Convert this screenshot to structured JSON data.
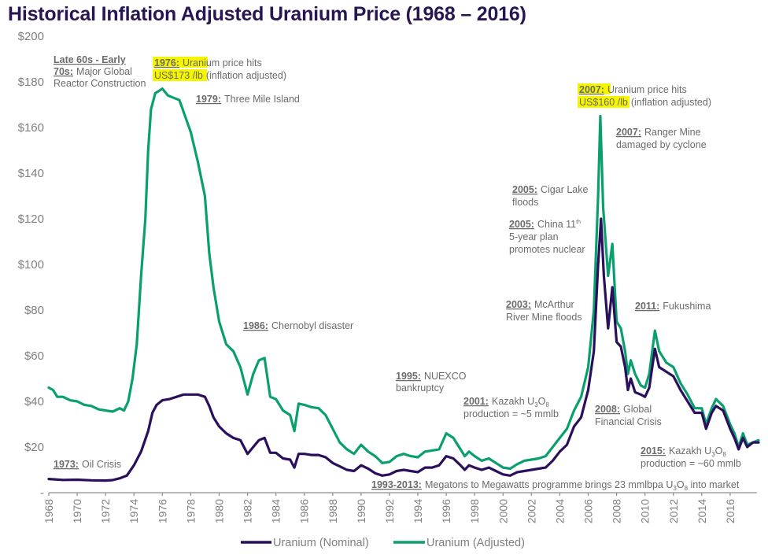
{
  "title": "Historical Inflation Adjusted Uranium Price (1968 – 2016)",
  "chart_data": {
    "type": "line",
    "title": "Historical Inflation Adjusted Uranium Price (1968 – 2016)",
    "xlabel": "",
    "ylabel": "",
    "xlim": [
      1968,
      2018
    ],
    "ylim": [
      0,
      200
    ],
    "yticks": [
      0,
      20,
      40,
      60,
      80,
      100,
      120,
      140,
      160,
      180,
      200
    ],
    "ytick_labels": [
      "-",
      "$20",
      "$40",
      "$60",
      "$80",
      "$100",
      "$120",
      "$140",
      "$160",
      "$180",
      "$200"
    ],
    "xticks": [
      1968,
      1970,
      1972,
      1974,
      1976,
      1978,
      1980,
      1982,
      1984,
      1986,
      1988,
      1990,
      1992,
      1994,
      1996,
      1998,
      2000,
      2002,
      2004,
      2006,
      2008,
      2010,
      2012,
      2014,
      2016
    ],
    "grid": false,
    "legend_position": "bottom",
    "series": [
      {
        "name": "Uranium (Nominal)",
        "color": "#2a0f5c",
        "points": [
          [
            1968.0,
            6.0
          ],
          [
            1969.0,
            5.6
          ],
          [
            1970.0,
            5.7
          ],
          [
            1971.0,
            5.4
          ],
          [
            1972.0,
            5.3
          ],
          [
            1972.5,
            5.5
          ],
          [
            1973.0,
            6.3
          ],
          [
            1973.5,
            7.5
          ],
          [
            1974.0,
            12
          ],
          [
            1974.5,
            18
          ],
          [
            1975.0,
            27
          ],
          [
            1975.3,
            35
          ],
          [
            1975.6,
            38.5
          ],
          [
            1976.0,
            40.5
          ],
          [
            1976.5,
            41
          ],
          [
            1977.0,
            42
          ],
          [
            1977.5,
            43
          ],
          [
            1978.0,
            43
          ],
          [
            1978.5,
            43
          ],
          [
            1979.0,
            42
          ],
          [
            1979.3,
            38
          ],
          [
            1979.6,
            33
          ],
          [
            1980.0,
            29
          ],
          [
            1980.5,
            26
          ],
          [
            1981.0,
            24
          ],
          [
            1981.5,
            23
          ],
          [
            1982.0,
            17
          ],
          [
            1982.4,
            20
          ],
          [
            1982.8,
            23
          ],
          [
            1983.2,
            24
          ],
          [
            1983.6,
            17.5
          ],
          [
            1984.0,
            17.5
          ],
          [
            1984.5,
            15
          ],
          [
            1985.0,
            14.5
          ],
          [
            1985.3,
            11
          ],
          [
            1985.6,
            17
          ],
          [
            1986.0,
            17
          ],
          [
            1986.5,
            16.5
          ],
          [
            1987.0,
            16.5
          ],
          [
            1987.5,
            15.5
          ],
          [
            1988.0,
            13
          ],
          [
            1988.5,
            11.5
          ],
          [
            1989.0,
            10
          ],
          [
            1989.5,
            9.5
          ],
          [
            1990.0,
            12
          ],
          [
            1990.5,
            10.5
          ],
          [
            1991.0,
            8.5
          ],
          [
            1991.5,
            7.5
          ],
          [
            1992.0,
            8
          ],
          [
            1992.5,
            9.5
          ],
          [
            1993.0,
            10
          ],
          [
            1993.5,
            9.5
          ],
          [
            1994.0,
            9
          ],
          [
            1994.5,
            11
          ],
          [
            1995.0,
            11
          ],
          [
            1995.5,
            12
          ],
          [
            1996.0,
            16
          ],
          [
            1996.5,
            15
          ],
          [
            1997.0,
            12
          ],
          [
            1997.3,
            10
          ],
          [
            1997.6,
            12
          ],
          [
            1998.0,
            11
          ],
          [
            1998.5,
            10
          ],
          [
            1999.0,
            11
          ],
          [
            1999.5,
            9.5
          ],
          [
            2000.0,
            8
          ],
          [
            2000.5,
            7.5
          ],
          [
            2001.0,
            9
          ],
          [
            2001.5,
            9.5
          ],
          [
            2002.0,
            10
          ],
          [
            2002.5,
            10.5
          ],
          [
            2003.0,
            11
          ],
          [
            2003.5,
            14
          ],
          [
            2004.0,
            18
          ],
          [
            2004.5,
            21
          ],
          [
            2005.0,
            29
          ],
          [
            2005.5,
            33
          ],
          [
            2006.0,
            45
          ],
          [
            2006.4,
            62
          ],
          [
            2006.7,
            100
          ],
          [
            2006.9,
            120
          ],
          [
            2007.1,
            95
          ],
          [
            2007.4,
            72
          ],
          [
            2007.7,
            90
          ],
          [
            2008.0,
            66
          ],
          [
            2008.3,
            64
          ],
          [
            2008.6,
            55
          ],
          [
            2008.8,
            45
          ],
          [
            2009.0,
            50
          ],
          [
            2009.3,
            44
          ],
          [
            2009.7,
            43
          ],
          [
            2010.0,
            42
          ],
          [
            2010.3,
            46
          ],
          [
            2010.7,
            63
          ],
          [
            2011.0,
            55
          ],
          [
            2011.5,
            53
          ],
          [
            2012.0,
            51
          ],
          [
            2012.5,
            45
          ],
          [
            2013.0,
            40
          ],
          [
            2013.5,
            35
          ],
          [
            2014.0,
            35
          ],
          [
            2014.3,
            28
          ],
          [
            2014.7,
            35
          ],
          [
            2015.0,
            38
          ],
          [
            2015.5,
            36
          ],
          [
            2016.0,
            28
          ],
          [
            2016.3,
            24
          ],
          [
            2016.6,
            19
          ],
          [
            2016.9,
            24
          ],
          [
            2017.2,
            20
          ],
          [
            2017.6,
            22
          ],
          [
            2018.0,
            22
          ]
        ]
      },
      {
        "name": "Uranium (Adjusted)",
        "color": "#0aa06e",
        "points": [
          [
            1968.0,
            46
          ],
          [
            1968.3,
            45
          ],
          [
            1968.6,
            42
          ],
          [
            1969.0,
            42
          ],
          [
            1969.5,
            40.5
          ],
          [
            1970.0,
            40
          ],
          [
            1970.5,
            38.5
          ],
          [
            1971.0,
            38
          ],
          [
            1971.5,
            36.5
          ],
          [
            1972.0,
            36
          ],
          [
            1972.5,
            35.5
          ],
          [
            1973.0,
            37
          ],
          [
            1973.3,
            36
          ],
          [
            1973.6,
            40
          ],
          [
            1973.9,
            50
          ],
          [
            1974.2,
            65
          ],
          [
            1974.5,
            95
          ],
          [
            1974.8,
            120
          ],
          [
            1975.0,
            150
          ],
          [
            1975.2,
            168
          ],
          [
            1975.5,
            175
          ],
          [
            1976.0,
            177
          ],
          [
            1976.4,
            174
          ],
          [
            1976.8,
            173
          ],
          [
            1977.2,
            172
          ],
          [
            1977.6,
            165
          ],
          [
            1978.0,
            158
          ],
          [
            1978.5,
            145
          ],
          [
            1979.0,
            130
          ],
          [
            1979.3,
            105
          ],
          [
            1979.6,
            90
          ],
          [
            1980.0,
            75
          ],
          [
            1980.5,
            65
          ],
          [
            1981.0,
            62
          ],
          [
            1981.5,
            55
          ],
          [
            1982.0,
            43
          ],
          [
            1982.4,
            52
          ],
          [
            1982.8,
            58
          ],
          [
            1983.2,
            59
          ],
          [
            1983.6,
            42
          ],
          [
            1984.0,
            41
          ],
          [
            1984.5,
            36
          ],
          [
            1985.0,
            34
          ],
          [
            1985.3,
            27
          ],
          [
            1985.6,
            39
          ],
          [
            1986.0,
            38.5
          ],
          [
            1986.5,
            37.5
          ],
          [
            1987.0,
            37
          ],
          [
            1987.5,
            34
          ],
          [
            1988.0,
            28
          ],
          [
            1988.5,
            22
          ],
          [
            1989.0,
            19
          ],
          [
            1989.5,
            17
          ],
          [
            1990.0,
            21
          ],
          [
            1990.5,
            18
          ],
          [
            1991.0,
            16
          ],
          [
            1991.5,
            13
          ],
          [
            1992.0,
            13.5
          ],
          [
            1992.5,
            16
          ],
          [
            1993.0,
            17
          ],
          [
            1993.5,
            16
          ],
          [
            1994.0,
            15.5
          ],
          [
            1994.5,
            18
          ],
          [
            1995.0,
            18.5
          ],
          [
            1995.5,
            19
          ],
          [
            1996.0,
            26
          ],
          [
            1996.5,
            24
          ],
          [
            1997.0,
            19
          ],
          [
            1997.3,
            16
          ],
          [
            1997.6,
            18
          ],
          [
            1998.0,
            16
          ],
          [
            1998.5,
            14
          ],
          [
            1999.0,
            15
          ],
          [
            1999.5,
            13
          ],
          [
            2000.0,
            11
          ],
          [
            2000.5,
            10.5
          ],
          [
            2001.0,
            12.5
          ],
          [
            2001.5,
            14
          ],
          [
            2002.0,
            14.5
          ],
          [
            2002.5,
            15
          ],
          [
            2003.0,
            16
          ],
          [
            2003.5,
            20
          ],
          [
            2004.0,
            24
          ],
          [
            2004.5,
            28
          ],
          [
            2005.0,
            36
          ],
          [
            2005.5,
            42
          ],
          [
            2006.0,
            55
          ],
          [
            2006.4,
            80
          ],
          [
            2006.7,
            130
          ],
          [
            2006.85,
            165
          ],
          [
            2007.05,
            125
          ],
          [
            2007.4,
            95
          ],
          [
            2007.7,
            109
          ],
          [
            2008.0,
            75
          ],
          [
            2008.3,
            72
          ],
          [
            2008.6,
            62
          ],
          [
            2008.8,
            52
          ],
          [
            2009.0,
            58
          ],
          [
            2009.3,
            52
          ],
          [
            2009.7,
            47
          ],
          [
            2010.0,
            46
          ],
          [
            2010.3,
            52
          ],
          [
            2010.7,
            71
          ],
          [
            2011.0,
            62
          ],
          [
            2011.5,
            57
          ],
          [
            2012.0,
            55
          ],
          [
            2012.5,
            48
          ],
          [
            2013.0,
            43
          ],
          [
            2013.5,
            37
          ],
          [
            2014.0,
            37
          ],
          [
            2014.3,
            30
          ],
          [
            2014.7,
            37
          ],
          [
            2015.0,
            41
          ],
          [
            2015.5,
            38
          ],
          [
            2016.0,
            30
          ],
          [
            2016.3,
            26
          ],
          [
            2016.6,
            20
          ],
          [
            2016.9,
            26
          ],
          [
            2017.2,
            21
          ],
          [
            2017.6,
            22
          ],
          [
            2018.0,
            23
          ]
        ]
      }
    ],
    "legend": [
      "Uranium (Nominal)",
      "Uranium (Adjusted)"
    ],
    "annotations": [
      {
        "id": "late60s",
        "year_label": "Late 60s - Early",
        "lines": [
          "70s: Major Global",
          "Reactor Construction"
        ],
        "year2": "70s:",
        "rest": "Major Global",
        "line3": "Reactor Construction"
      },
      {
        "id": "a1976",
        "year": "1976:",
        "line1": "Uranium price hits",
        "highlight": "US$173 /lb",
        "line2": "(inflation adjusted)"
      },
      {
        "id": "a1979",
        "year": "1979:",
        "text": "Three Mile Island"
      },
      {
        "id": "a1973",
        "year": "1973:",
        "text": "Oil Crisis"
      },
      {
        "id": "a1986",
        "year": "1986:",
        "text": "Chernobyl disaster"
      },
      {
        "id": "a1995",
        "year": "1995:",
        "line1": "NUEXCO",
        "line2": "bankruptcy"
      },
      {
        "id": "a2001",
        "year": "2001:",
        "line1": "Kazakh U3O8",
        "line2": "production = ~5 mmlb"
      },
      {
        "id": "a1993",
        "year": "1993-2013:",
        "text": "Megatons to Megawatts programme brings 23 mmlbpa U3O8 into market"
      },
      {
        "id": "a2003",
        "year": "2003:",
        "line1": "McArthur",
        "line2": "River Mine floods"
      },
      {
        "id": "a2005a",
        "year": "2005:",
        "line1": "Cigar Lake",
        "line2": "floods"
      },
      {
        "id": "a2005b",
        "year": "2005:",
        "line1": "China 11th",
        "line2": "5-year plan",
        "line3": "promotes nuclear"
      },
      {
        "id": "a2007a",
        "year": "2007:",
        "line1": "Uranium price hits",
        "highlight": "US$160 /lb",
        "line2": "(inflation adjusted)"
      },
      {
        "id": "a2007b",
        "year": "2007:",
        "line1": "Ranger Mine",
        "line2": "damaged by cyclone"
      },
      {
        "id": "a2011",
        "year": "2011:",
        "text": "Fukushima"
      },
      {
        "id": "a2008",
        "year": "2008:",
        "line1": "Global",
        "line2": "Financial Crisis"
      },
      {
        "id": "a2015",
        "year": "2015:",
        "line1": "Kazakh U3O8",
        "line2": "production = ~60 mmlb"
      }
    ],
    "colors": {
      "nominal": "#2a0f5c",
      "adjusted": "#0aa06e",
      "highlight": "#f5f500",
      "title": "#2a1553",
      "axis_text": "#7f7f7f",
      "annotation_text": "#6b6b6b"
    }
  }
}
